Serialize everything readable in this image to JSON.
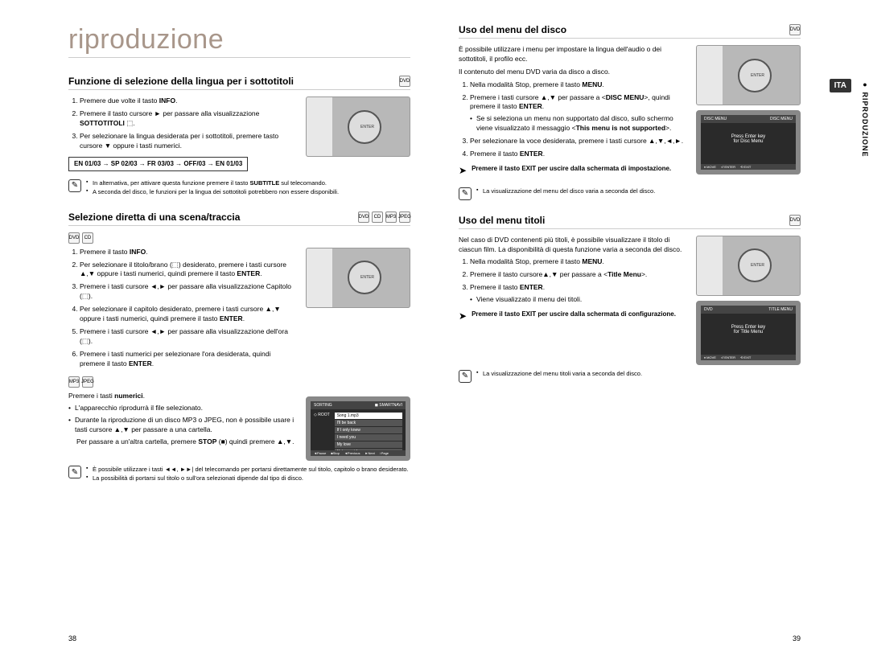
{
  "chapter_title": "riproduzione",
  "side_tab": "● RIPRODUZIONE",
  "side_lang": "ITA",
  "page_left_num": "38",
  "page_right_num": "39",
  "sec1": {
    "title": "Funzione di selezione della lingua per i sottotitoli",
    "steps": [
      "Premere due volte il tasto <strong>INFO</strong>.",
      "Premere il tasto cursore ► per passare alla visualizzazione <strong>SOTTOTITOLI</strong> ⬚.",
      "Per selezionare la lingua desiderata per i sottotitoli, premere tasto cursore ▼ oppure i tasti numerici."
    ],
    "boxed": "EN 01/03 → SP 02/03 → FR 03/03 → OFF/03 → EN 01/03",
    "notes": [
      "In alternativa, per attivare questa funzione premere il tasto <strong>SUBTITLE</strong> sul telecomando.",
      "A seconda del disco, le funzioni per la lingua dei sottotitoli potrebbero non essere disponibili."
    ]
  },
  "sec2": {
    "title": "Selezione diretta di una scena/traccia",
    "steps": [
      "Premere il tasto <strong>INFO</strong>.",
      "Per selezionare il titolo/brano (⬚) desiderato, premere i tasti cursore ▲,▼ oppure i tasti numerici, quindi premere il tasto <strong>ENTER</strong>.",
      "Premere i tasti cursore ◄,► per passare alla visualizzazione Capitolo (⬚).",
      "Per selezionare il capitolo desiderato, premere i tasti cursore ▲,▼ oppure i tasti numerici, quindi premere il tasto <strong>ENTER</strong>.",
      "Premere i tasti cursore ◄,► per passare alla visualizzazione dell'ora (⬚).",
      "Premere i tasti numerici per selezionare l'ora desiderata, quindi premere il tasto <strong>ENTER</strong>."
    ],
    "sub_intro": "Premere i tasti <strong>numerici</strong>.",
    "sub_bullets": [
      "L'apparecchio riprodurrà il file selezionato.",
      "Durante la riproduzione di un disco MP3 o JPEG, non è possibile usare i tasti cursore ▲,▼ per passare a una cartella.",
      "Per passare a un'altra cartella, premere <strong>STOP</strong> (■) quindi premere ▲,▼."
    ],
    "notes": [
      "È possibile utilizzare i tasti ◄◄, ►►| del telecomando per portarsi direttamente sul titolo, capitolo o brano desiderato.",
      "La possibilità di portarsi sul titolo o sull'ora selezionati dipende dal tipo di disco."
    ],
    "screen_header_l": "SORTING",
    "screen_header_r": "◼ SMARTNAVI",
    "screen_items": [
      "Song 1.mp3",
      "I'll be back",
      "If I only knew",
      "I need you",
      "My love",
      "Uptown girl"
    ],
    "screen_footer": [
      "◄Pause",
      "■Stop",
      "◄Previous",
      "►Next",
      "↕Page"
    ]
  },
  "sec3": {
    "title": "Uso del menu del disco",
    "intro": "È possibile utilizzare i menu per impostare la lingua dell'audio o dei sottotitoli, il profilo ecc.",
    "intro2": "Il contenuto del menu DVD varia da disco a disco.",
    "steps": [
      "Nella modalità Stop, premere il tasto <strong>MENU</strong>.",
      "Premere i tasti cursore ▲,▼ per passare a &lt;<strong>DISC MENU</strong>&gt;, quindi premere il tasto <strong>ENTER</strong>.",
      "Per selezionare la voce desiderata, premere i tasti cursore ▲,▼,◄,►.",
      "Premere il tasto <strong>ENTER</strong>."
    ],
    "step2_sub": "Se si seleziona un menu non supportato dal disco, sullo schermo viene visualizzato il messaggio &lt;<strong>This menu is not supported</strong>&gt;.",
    "tip": "Premere il tasto EXIT per uscire dalla schermata di impostazione.",
    "note": "La visualizzazione del menu del disco varia a seconda del disco.",
    "screen_header_l": "DISC MENU",
    "screen_header_r": "DISC MENU",
    "screen_line1": "Press Enter key",
    "screen_line2": "for Disc Menu",
    "screen_footer": [
      "♦ MOVE",
      "⏎ ENTER",
      "⟲ EXIT"
    ]
  },
  "sec4": {
    "title": "Uso del menu titoli",
    "intro": "Nel caso di DVD contenenti più titoli, è possibile visualizzare il titolo di ciascun film. La disponibilità di questa funzione varia a seconda del disco.",
    "steps": [
      "Nella modalità Stop, premere il tasto <strong>MENU</strong>.",
      "Premere il tasto cursore▲,▼ per passare a &lt;<strong>Title Menu</strong>&gt;.",
      "Premere il tasto <strong>ENTER</strong>."
    ],
    "step3_sub": "Viene visualizzato il menu dei titoli.",
    "tip": "Premere il tasto EXIT per uscire dalla schermata di configurazione.",
    "note": "La visualizzazione del menu titoli varia a seconda del disco.",
    "screen_header_l": "DVD",
    "screen_header_r": "TITLE MENU",
    "screen_line1": "Press Enter key",
    "screen_line2": "for Title Menu",
    "screen_footer": [
      "♦ MOVE",
      "⏎ ENTER",
      "⟲ EXIT"
    ]
  }
}
